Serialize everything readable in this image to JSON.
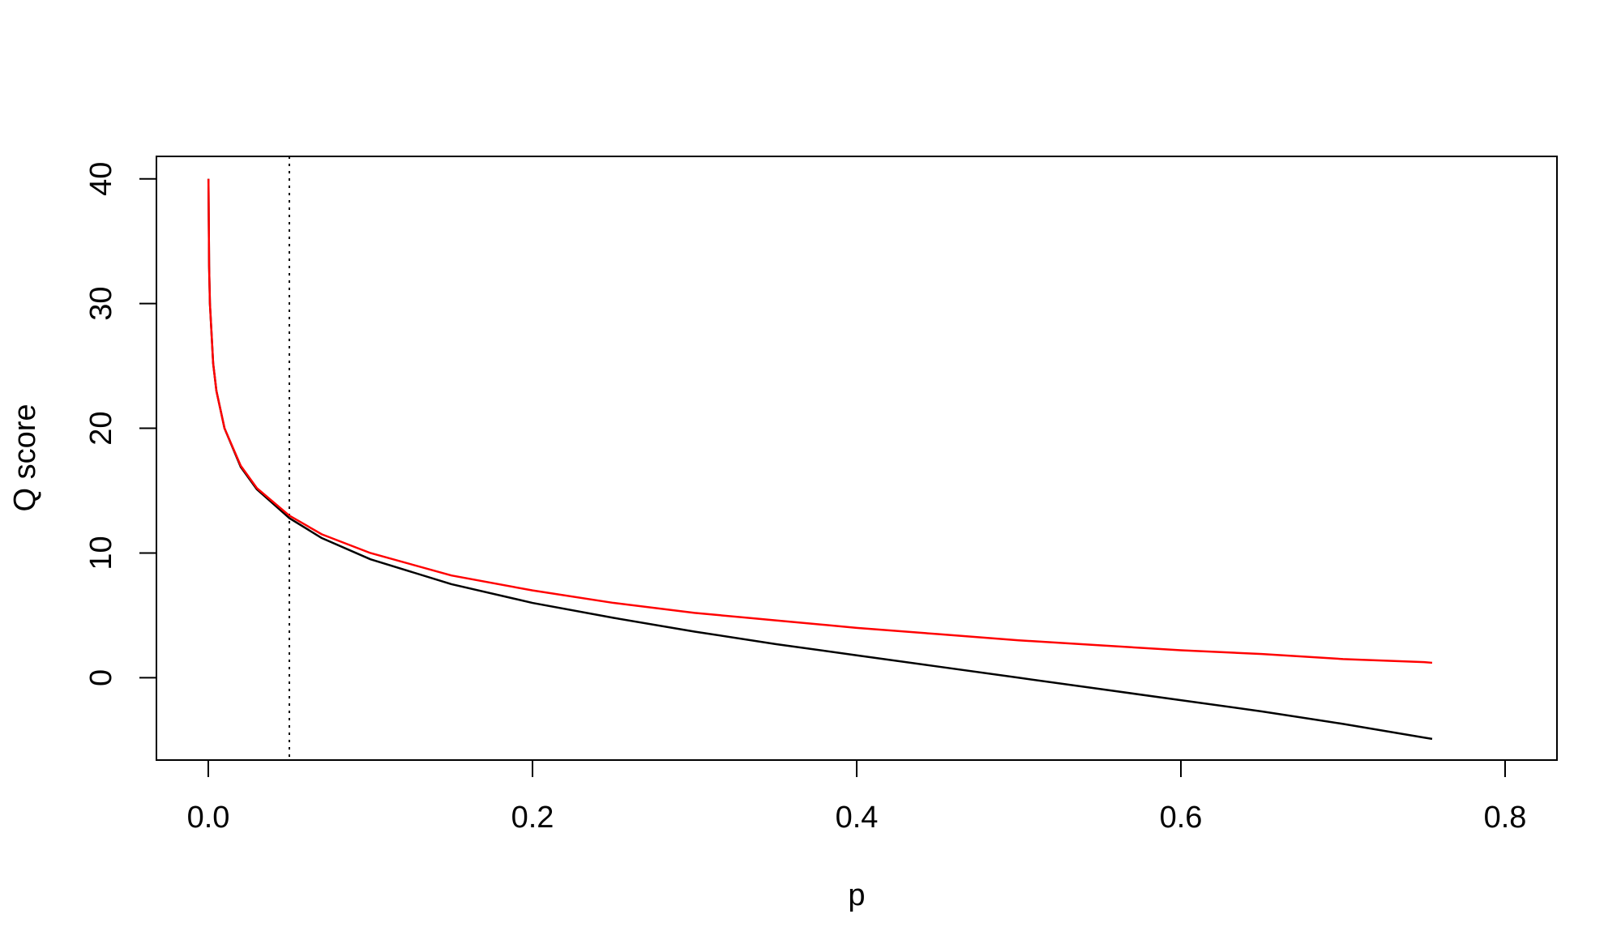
{
  "chart_data": {
    "type": "line",
    "title": "",
    "xlabel": "p",
    "ylabel": "Q score",
    "xlim": [
      -0.032,
      0.832
    ],
    "ylim": [
      -6.6,
      41.8
    ],
    "x_ticks": [
      0.0,
      0.2,
      0.4,
      0.6,
      0.8
    ],
    "x_tick_labels": [
      "0.0",
      "0.2",
      "0.4",
      "0.6",
      "0.8"
    ],
    "y_ticks": [
      0,
      10,
      20,
      30,
      40
    ],
    "y_tick_labels": [
      "0",
      "10",
      "20",
      "30",
      "40"
    ],
    "grid": false,
    "legend": "none",
    "reference_lines": [
      {
        "orientation": "vertical",
        "x": 0.05,
        "style": "dotted",
        "color": "#000000"
      }
    ],
    "series": [
      {
        "color": "#000000",
        "x": [
          0.0001,
          0.0005,
          0.001,
          0.003,
          0.005,
          0.01,
          0.02,
          0.03,
          0.05,
          0.07,
          0.1,
          0.15,
          0.2,
          0.25,
          0.3,
          0.35,
          0.4,
          0.45,
          0.5,
          0.55,
          0.6,
          0.65,
          0.7,
          0.75,
          0.755
        ],
        "y": [
          40.0,
          33.0,
          30.0,
          25.2,
          23.0,
          20.0,
          16.9,
          15.1,
          12.8,
          11.2,
          9.5,
          7.5,
          6.0,
          4.8,
          3.7,
          2.7,
          1.8,
          0.9,
          0.0,
          -0.9,
          -1.8,
          -2.7,
          -3.7,
          -4.8,
          -4.9
        ]
      },
      {
        "color": "#ff0000",
        "x": [
          0.0001,
          0.0005,
          0.001,
          0.003,
          0.005,
          0.01,
          0.02,
          0.03,
          0.05,
          0.07,
          0.1,
          0.15,
          0.2,
          0.25,
          0.3,
          0.35,
          0.4,
          0.45,
          0.5,
          0.55,
          0.6,
          0.65,
          0.7,
          0.75,
          0.755
        ],
        "y": [
          40.0,
          33.0,
          30.0,
          25.2,
          23.0,
          20.0,
          17.0,
          15.2,
          13.0,
          11.5,
          10.0,
          8.2,
          7.0,
          6.0,
          5.2,
          4.6,
          4.0,
          3.5,
          3.0,
          2.6,
          2.2,
          1.9,
          1.5,
          1.25,
          1.2
        ]
      }
    ]
  }
}
